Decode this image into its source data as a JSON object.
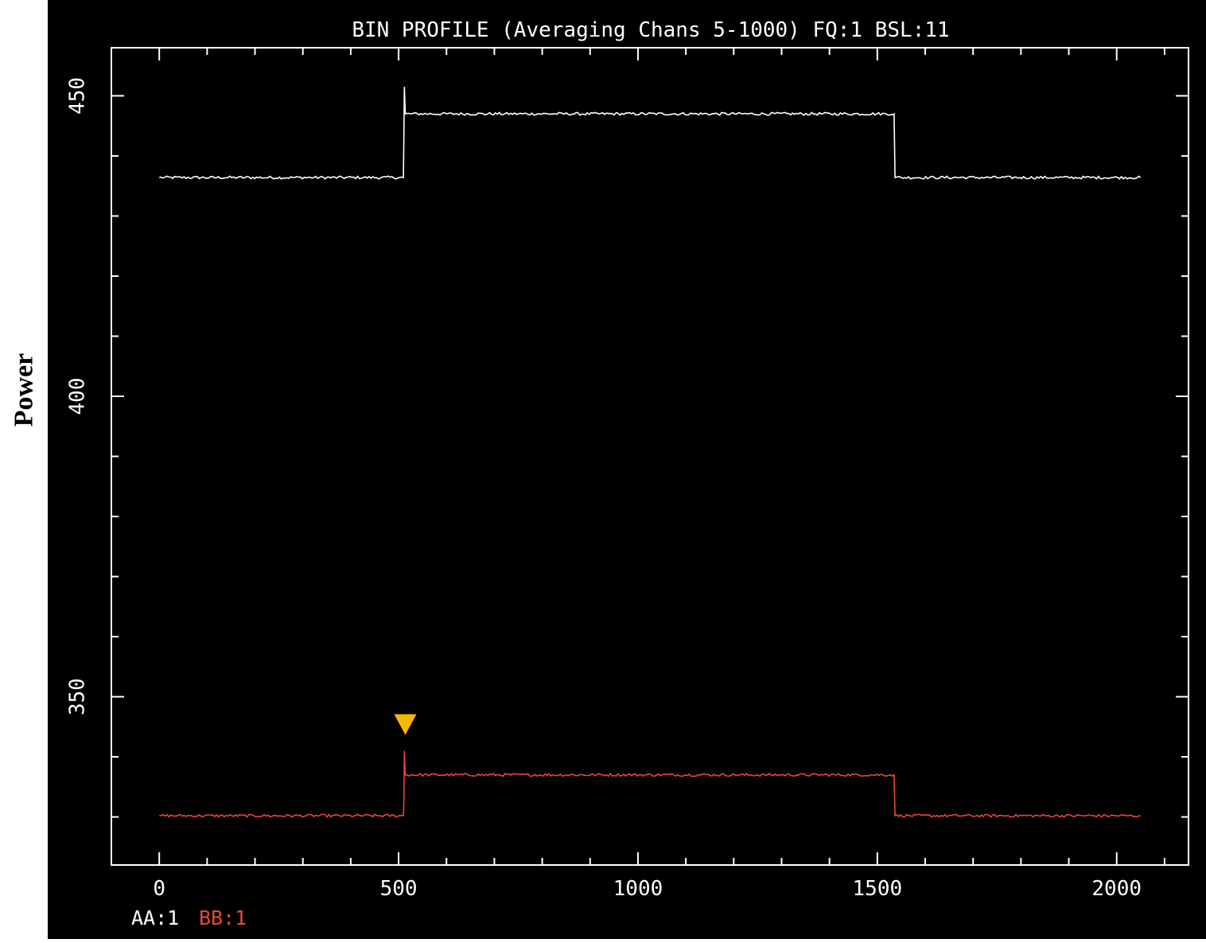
{
  "outer_ylabel": "Power",
  "chart_data": {
    "type": "line",
    "title": "BIN PROFILE (Averaging Chans 5-1000)   FQ:1 BSL:11",
    "xlabel": "",
    "ylabel": "Power",
    "xlim": [
      -100,
      2150
    ],
    "ylim": [
      322,
      458
    ],
    "xticks": [
      0,
      500,
      1000,
      1500,
      2000
    ],
    "yticks": [
      350,
      400,
      450
    ],
    "grid": false,
    "background": "#000000",
    "axis_color": "#ffffff",
    "series": [
      {
        "name": "AA:1",
        "color": "#ffffff",
        "points": [
          [
            0,
            436.4
          ],
          [
            510,
            436.4
          ],
          [
            511,
            443.0
          ],
          [
            512,
            451.5
          ],
          [
            514,
            447.0
          ],
          [
            1535,
            447.0
          ],
          [
            1537,
            436.4
          ],
          [
            2050,
            436.4
          ]
        ]
      },
      {
        "name": "BB:1",
        "color": "#e8473a",
        "points": [
          [
            0,
            330.2
          ],
          [
            510,
            330.2
          ],
          [
            511,
            332.5
          ],
          [
            512,
            341.0
          ],
          [
            514,
            337.0
          ],
          [
            1535,
            337.0
          ],
          [
            1537,
            330.2
          ],
          [
            2050,
            330.2
          ]
        ]
      }
    ],
    "annotations": [
      {
        "type": "triangle-marker",
        "x": 514,
        "y": 345.5,
        "color": "#f5b800"
      }
    ],
    "legend": [
      {
        "label": "AA:1",
        "color": "#ffffff"
      },
      {
        "label": "BB:1",
        "color": "#e8473a"
      }
    ],
    "legend_placement": "bottom-left"
  }
}
